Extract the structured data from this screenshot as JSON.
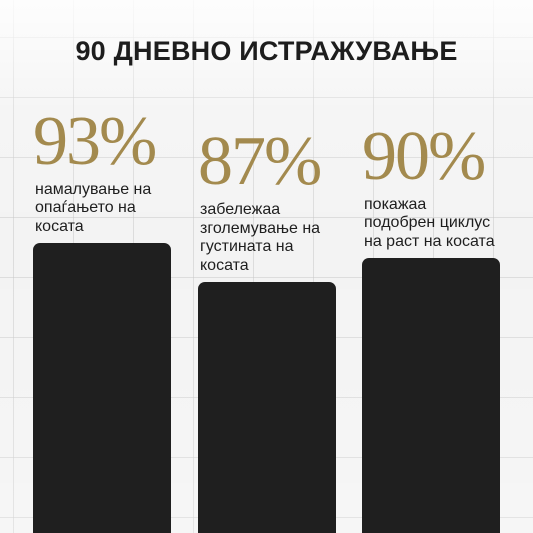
{
  "title": "90 ДНЕВНО ИСТРАЖУВАЊЕ",
  "colors": {
    "accent": "#a38a4e",
    "bar": "#1f1f1f",
    "text": "#1e1e1e",
    "background": "#f3f3f3"
  },
  "chart_data": {
    "type": "bar",
    "title": "90 ДНЕВНО ИСТРАЖУВАЊЕ",
    "categories": [
      "намалување на опаѓањето на косата",
      "забележаа зголемување на густината на косата",
      "покажаа подобрен циклус на раст на косата"
    ],
    "values": [
      93,
      87,
      90
    ],
    "value_labels": [
      "93%",
      "87%",
      "90%"
    ],
    "descriptions": [
      "намалување на\nопаѓањето на\nкосата",
      "забележаа\nзголемување на\nгустината на\nкосата",
      "покажаа\nподобрен циклус\nна раст на косата"
    ],
    "grid": false,
    "legend": "none"
  }
}
